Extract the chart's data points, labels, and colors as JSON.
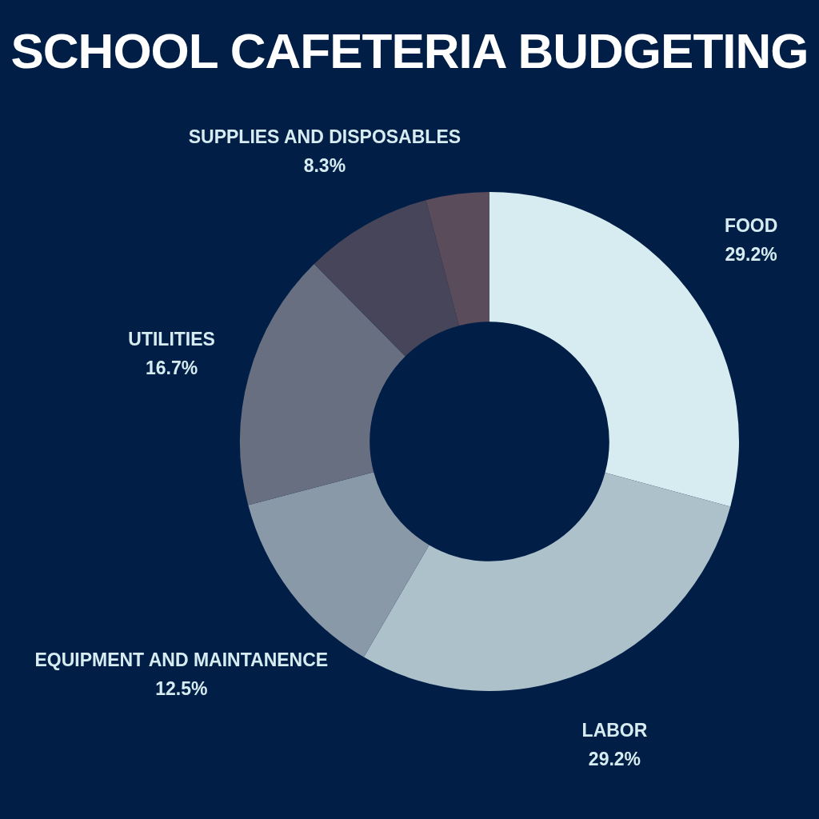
{
  "chart_data": {
    "type": "donut",
    "title": "SCHOOL CAFETERIA BUDGETING",
    "categories": [
      "FOOD",
      "LABOR",
      "EQUIPMENT AND MAINTANENCE",
      "UTILITIES",
      "SUPPLIES AND DISPOSABLES",
      null
    ],
    "values": [
      29.2,
      29.2,
      12.5,
      16.7,
      8.3,
      4.1
    ],
    "value_labels": [
      "29.2%",
      "29.2%",
      "12.5%",
      "16.7%",
      "8.3%",
      null
    ],
    "colors": [
      "#d6ecf0",
      "#adc1cb",
      "#8999a8",
      "#676f80",
      "#464559",
      "#5b4c5c"
    ],
    "legend": false
  }
}
